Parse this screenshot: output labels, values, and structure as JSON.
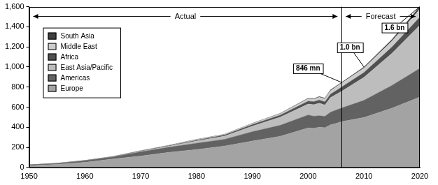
{
  "chart_data": {
    "type": "area",
    "stacked": true,
    "grid": false,
    "legend": "upper left",
    "x": [
      1950,
      1955,
      1960,
      1965,
      1970,
      1975,
      1980,
      1985,
      1990,
      1995,
      2000,
      2001,
      2002,
      2003,
      2004,
      2005,
      2006,
      2010,
      2015,
      2020
    ],
    "series": [
      {
        "name": "Europe",
        "color": "#a3a3a3",
        "values": [
          17,
          30,
          50,
          84,
          113,
          150,
          178,
          213,
          262,
          310,
          393,
          390,
          400,
          395,
          424,
          438,
          456,
          497,
          590,
          700
        ]
      },
      {
        "name": "Americas",
        "color": "#626262",
        "values": [
          7.5,
          9,
          16.7,
          19,
          42,
          50,
          62,
          66,
          93,
          109,
          128,
          120,
          114,
          113,
          125,
          133,
          135,
          170,
          225,
          285
        ]
      },
      {
        "name": "East Asia/Pacific",
        "color": "#bdbdbd",
        "values": [
          0.2,
          0.5,
          0.9,
          2,
          6,
          10,
          23,
          32,
          56,
          82,
          110,
          115,
          126,
          113,
          146,
          155,
          167,
          230,
          320,
          430
        ]
      },
      {
        "name": "Africa",
        "color": "#505050",
        "values": [
          0.5,
          1,
          0.8,
          1.5,
          2.4,
          4.5,
          7,
          10,
          15,
          19,
          28,
          29,
          30,
          31,
          33,
          37,
          41,
          47,
          62,
          80
        ]
      },
      {
        "name": "Middle East",
        "color": "#cccccc",
        "values": [
          0.2,
          0.5,
          0.6,
          1.5,
          1.9,
          3,
          7,
          6,
          10,
          14,
          24,
          24,
          29,
          30,
          36,
          38,
          40,
          45,
          60,
          80
        ]
      },
      {
        "name": "South Asia",
        "color": "#404040",
        "values": [
          0.04,
          0.1,
          0.2,
          0.5,
          0.9,
          1.5,
          2,
          2.5,
          3,
          4,
          6,
          6,
          6,
          7,
          8,
          8,
          7,
          11,
          16,
          25
        ]
      }
    ],
    "xlim": [
      1950,
      2020
    ],
    "xticks": [
      1950,
      1960,
      1970,
      1980,
      1990,
      2000,
      2010,
      2020
    ],
    "ylim": [
      0,
      1600
    ],
    "yticks": [
      0,
      200,
      400,
      600,
      800,
      {
        "value": 1000,
        "label": "1,000"
      },
      {
        "value": 1200,
        "label": "1,200"
      },
      {
        "value": 1400,
        "label": "1,400"
      },
      {
        "value": 1600,
        "label": "1,600"
      }
    ],
    "annotations": [
      {
        "text": "846 mn",
        "x": 2006,
        "y": 846
      },
      {
        "text": "1.0 bn",
        "x": 2010,
        "y": 1000
      },
      {
        "text": "1.6 bn",
        "x": 2020,
        "y": 1600
      }
    ],
    "periods": [
      {
        "label": "Actual",
        "from": 1950,
        "to": 2006
      },
      {
        "label": "Forecast",
        "from": 2006,
        "to": 2020
      }
    ]
  }
}
